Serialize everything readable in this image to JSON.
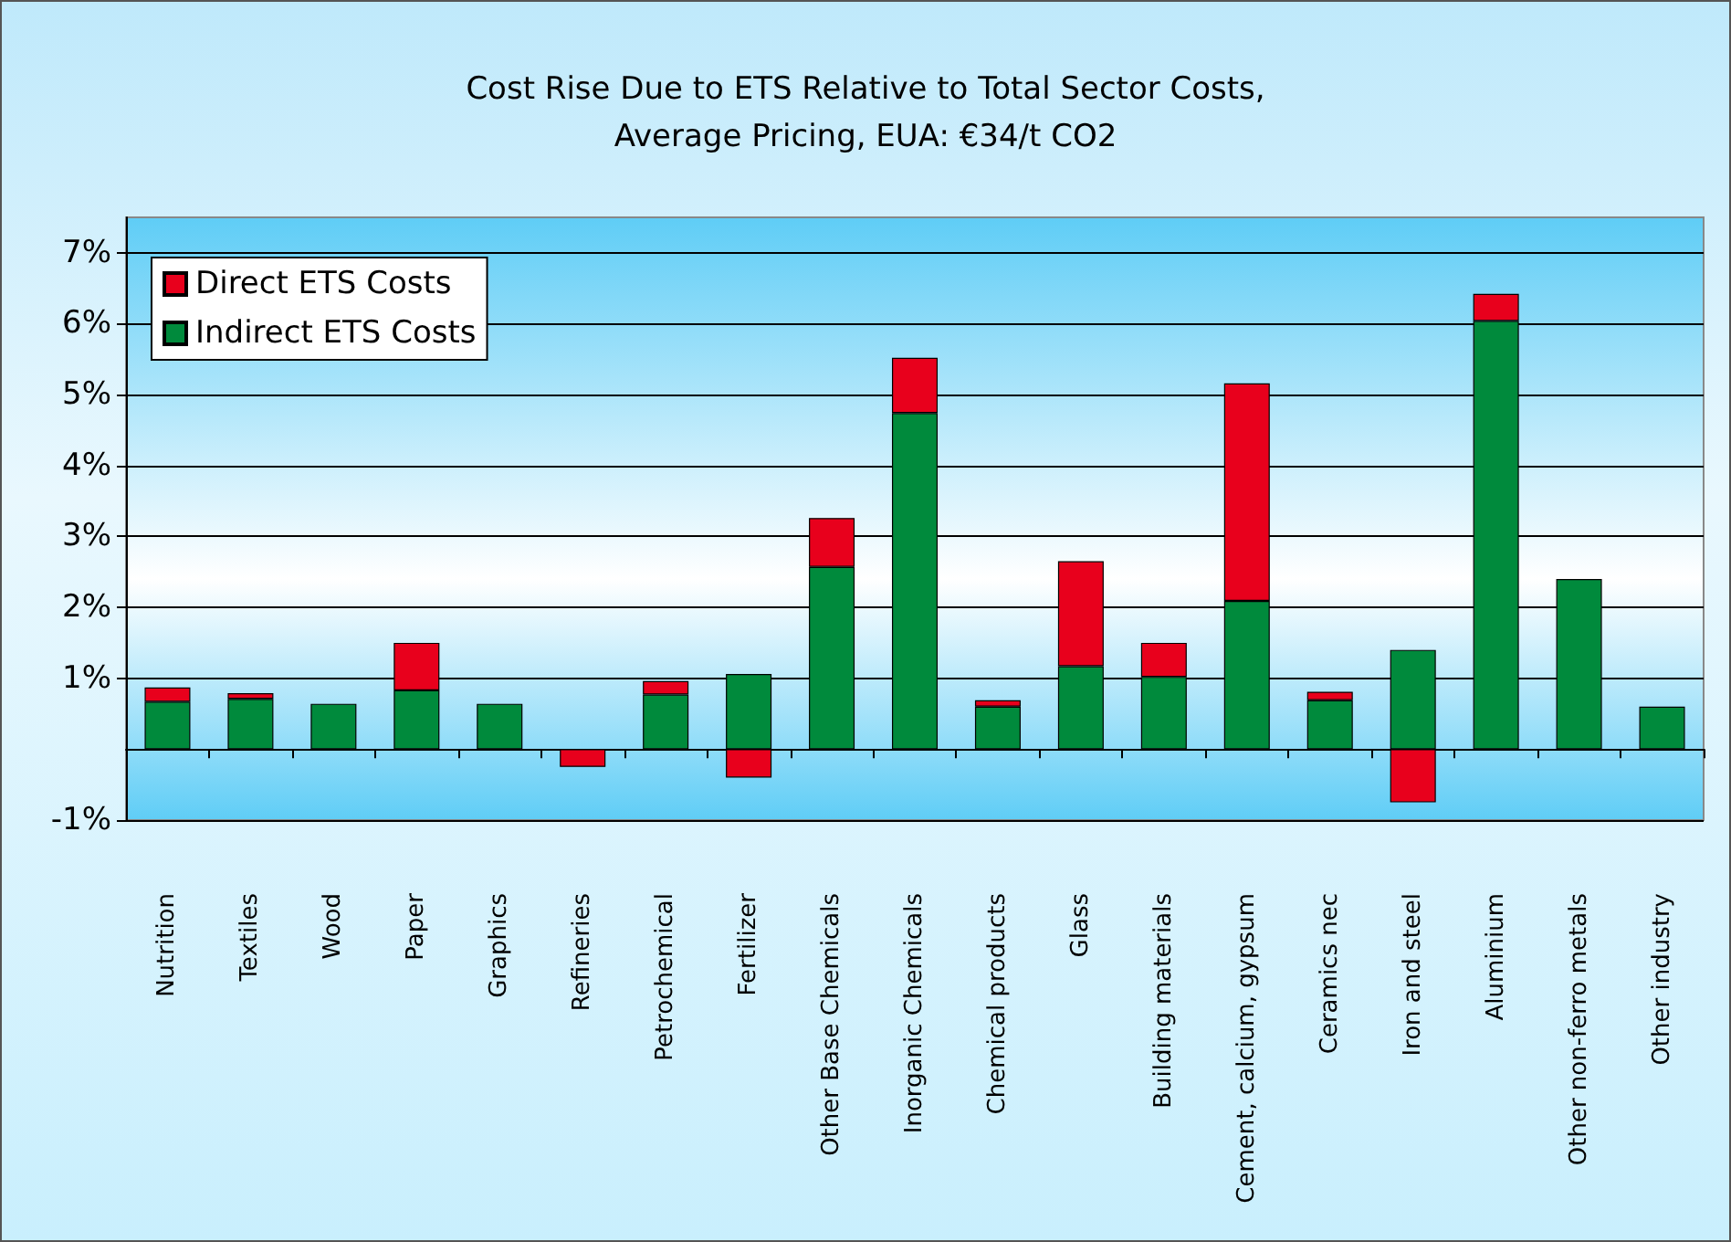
{
  "chart_data": {
    "type": "bar",
    "title": "Cost Rise Due to ETS Relative to Total Sector Costs,\nAverage Pricing, EUA: €34/t CO2",
    "categories": [
      "Nutrition",
      "Textiles",
      "Wood",
      "Paper",
      "Graphics",
      "Refineries",
      "Petrochemical",
      "Fertilizer",
      "Other Base Chemicals",
      "Inorganic Chemicals",
      "Chemical products",
      "Glass",
      "Building materials",
      "Cement, calcium, gypsum",
      "Ceramics nec",
      "Iron and steel",
      "Aluminium",
      "Other non-ferro metals",
      "Other industry"
    ],
    "stacked": true,
    "series": [
      {
        "name": "Indirect ETS Costs",
        "color": "#008a3c",
        "values": [
          0.67,
          0.71,
          0.64,
          0.83,
          0.64,
          null,
          0.77,
          1.06,
          2.57,
          4.74,
          0.6,
          1.17,
          1.02,
          2.09,
          0.69,
          1.4,
          6.04,
          2.4,
          0.6
        ]
      },
      {
        "name": "Direct ETS Costs",
        "color": "#e8001c",
        "values": [
          0.2,
          0.08,
          null,
          0.67,
          null,
          -0.25,
          0.19,
          -0.4,
          0.69,
          0.78,
          0.09,
          1.48,
          0.48,
          3.07,
          0.12,
          -0.75,
          0.38,
          null,
          null
        ]
      }
    ],
    "ylim": [
      -1,
      7.5
    ],
    "yticks": [
      {
        "value": -1,
        "label": "-1%"
      },
      {
        "value": 1,
        "label": "1%"
      },
      {
        "value": 2,
        "label": "2%"
      },
      {
        "value": 3,
        "label": "3%"
      },
      {
        "value": 4,
        "label": "4%"
      },
      {
        "value": 5,
        "label": "5%"
      },
      {
        "value": 6,
        "label": "6%"
      },
      {
        "value": 7,
        "label": "7%"
      }
    ],
    "grid": "y",
    "legend": "top left"
  }
}
